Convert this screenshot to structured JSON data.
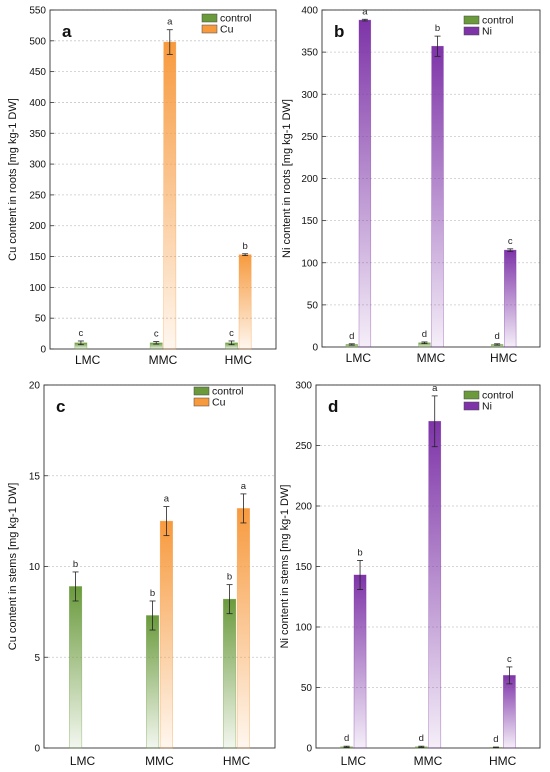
{
  "chart_data": [
    {
      "type": "bar",
      "panel": "a",
      "ylabel": "Cu content in roots [mg kg-1 DW]",
      "ylim": [
        0,
        550
      ],
      "yticks": [
        0,
        50,
        100,
        150,
        200,
        250,
        300,
        350,
        400,
        450,
        500,
        550
      ],
      "categories": [
        "LMC",
        "MMC",
        "HMC"
      ],
      "legend_position": "top-right",
      "grid": "horizontal",
      "series": [
        {
          "name": "control",
          "color": "#6a9a3c",
          "values": [
            10,
            10,
            10
          ],
          "errors": [
            3,
            2,
            3
          ],
          "letters": [
            "c",
            "c",
            "c"
          ]
        },
        {
          "name": "Cu",
          "color": "#f79a3e",
          "values": [
            null,
            498,
            153
          ],
          "errors": [
            null,
            20,
            1.5
          ],
          "letters": [
            "",
            "a",
            "b"
          ]
        }
      ]
    },
    {
      "type": "bar",
      "panel": "b",
      "ylabel": "Ni content in roots [mg kg-1 DW]",
      "ylim": [
        0,
        400
      ],
      "yticks": [
        0,
        50,
        100,
        150,
        200,
        250,
        300,
        350,
        400
      ],
      "categories": [
        "LMC",
        "MMC",
        "HMC"
      ],
      "legend_position": "top-right",
      "grid": "horizontal",
      "series": [
        {
          "name": "control",
          "color": "#6a9a3c",
          "values": [
            3,
            5,
            3
          ],
          "errors": [
            0.8,
            1,
            0.8
          ],
          "letters": [
            "d",
            "d",
            "d"
          ]
        },
        {
          "name": "Ni",
          "color": "#7e34a8",
          "values": [
            388,
            357,
            115
          ],
          "errors": [
            1,
            12,
            1.5
          ],
          "letters": [
            "a",
            "b",
            "c"
          ]
        }
      ]
    },
    {
      "type": "bar",
      "panel": "c",
      "ylabel": "Cu content in stems [mg kg-1 DW]",
      "ylim": [
        0,
        20
      ],
      "yticks": [
        0,
        5,
        10,
        15,
        20
      ],
      "categories": [
        "LMC",
        "MMC",
        "HMC"
      ],
      "legend_position": "top-right",
      "grid": "horizontal",
      "series": [
        {
          "name": "control",
          "color": "#6a9a3c",
          "values": [
            8.9,
            7.3,
            8.2
          ],
          "errors": [
            0.8,
            0.8,
            0.8
          ],
          "letters": [
            "b",
            "b",
            "b"
          ]
        },
        {
          "name": "Cu",
          "color": "#f79a3e",
          "values": [
            null,
            12.5,
            13.2
          ],
          "errors": [
            null,
            0.8,
            0.8
          ],
          "letters": [
            "",
            "a",
            "a"
          ]
        }
      ]
    },
    {
      "type": "bar",
      "panel": "d",
      "ylabel": "Ni content in stems [mg kg-1 DW]",
      "ylim": [
        0,
        300
      ],
      "yticks": [
        0,
        50,
        100,
        150,
        200,
        250,
        300
      ],
      "categories": [
        "LMC",
        "MMC",
        "HMC"
      ],
      "legend_position": "top-right",
      "grid": "horizontal",
      "series": [
        {
          "name": "control",
          "color": "#6a9a3c",
          "values": [
            1,
            1,
            0.5
          ],
          "errors": [
            0.5,
            0.5,
            0.3
          ],
          "letters": [
            "d",
            "d",
            "d"
          ]
        },
        {
          "name": "Ni",
          "color": "#7e34a8",
          "values": [
            143,
            270,
            60
          ],
          "errors": [
            12,
            21,
            7
          ],
          "letters": [
            "b",
            "a",
            "c"
          ]
        }
      ]
    }
  ]
}
